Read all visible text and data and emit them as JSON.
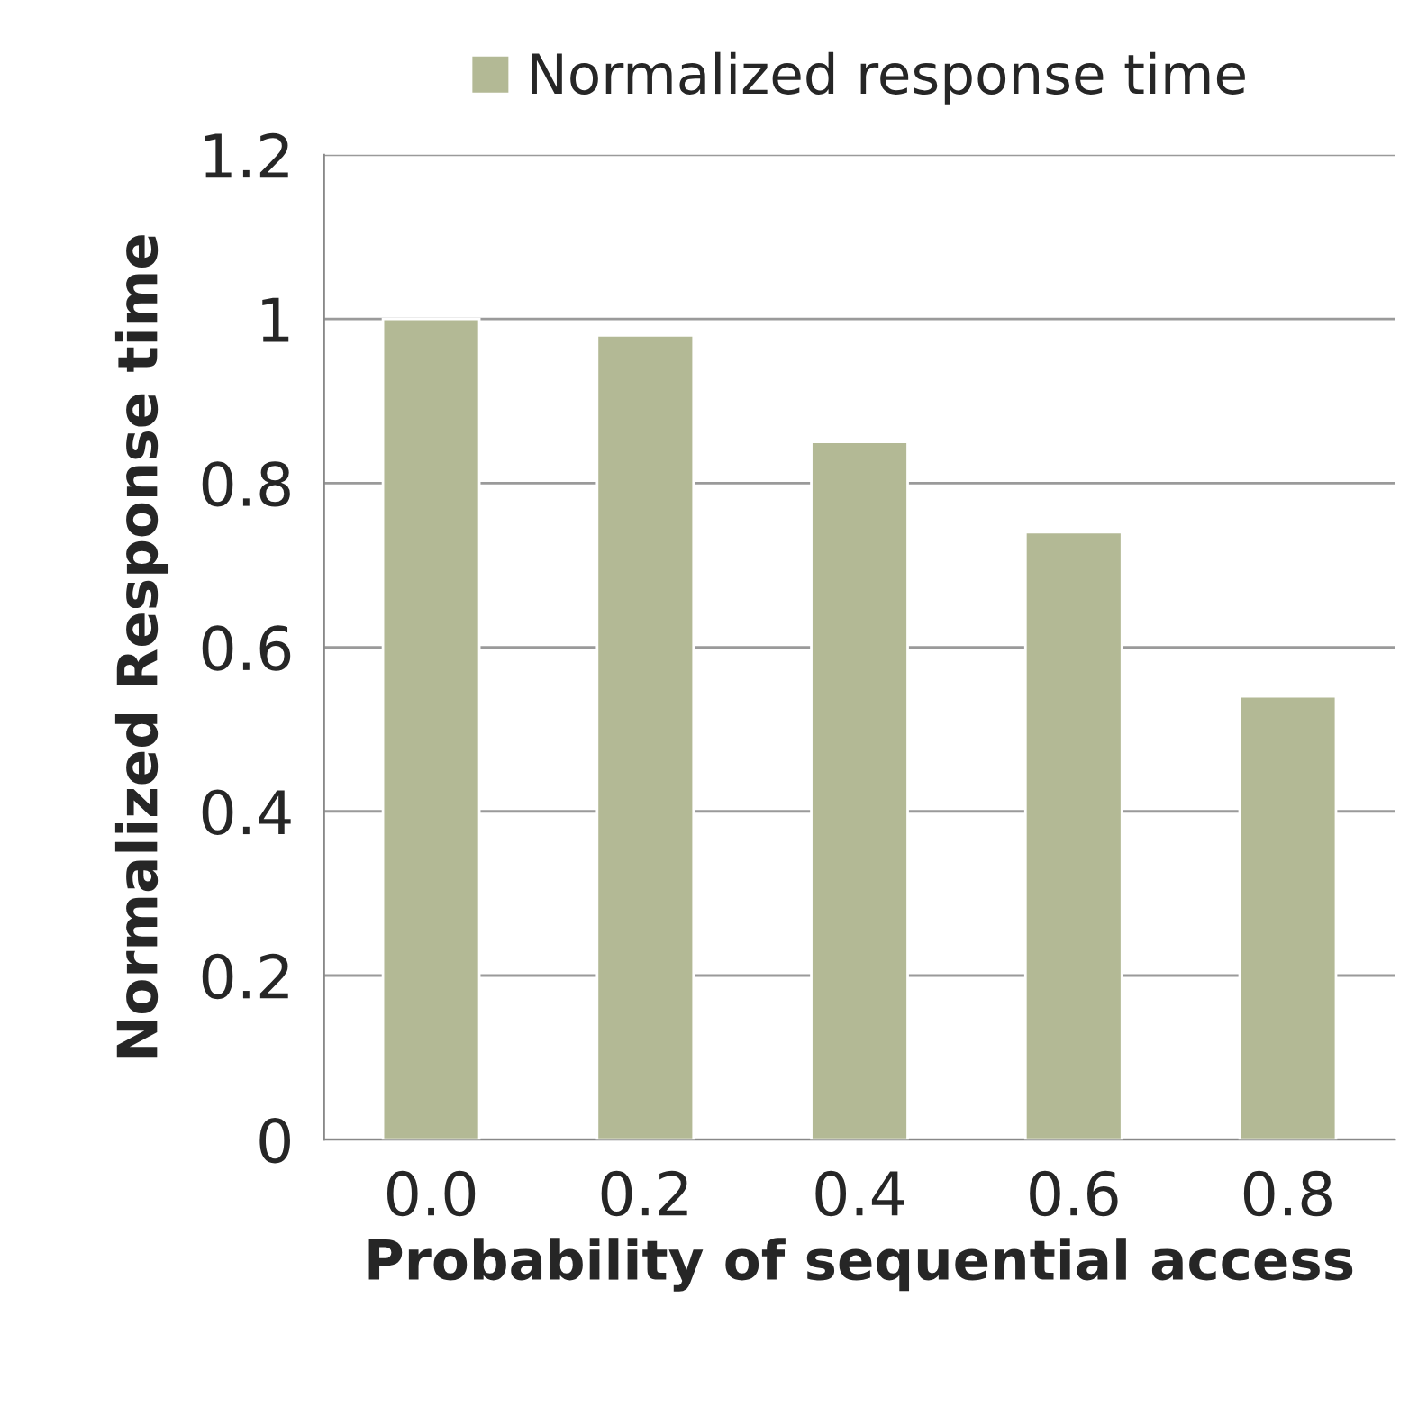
{
  "chart_data": {
    "type": "bar",
    "xlabel": "Probability of sequential access",
    "ylabel": "Normalized Response time",
    "categories": [
      "0.0",
      "0.2",
      "0.4",
      "0.6",
      "0.8"
    ],
    "series": [
      {
        "name": "Normalized response time",
        "color": "#b3b995",
        "values": [
          1.0,
          0.98,
          0.85,
          0.74,
          0.54
        ]
      }
    ],
    "ylim": [
      0,
      1.2
    ],
    "yticks": [
      0,
      0.2,
      0.4,
      0.6,
      0.8,
      1,
      1.2
    ],
    "grid": "y",
    "legend": "top"
  }
}
